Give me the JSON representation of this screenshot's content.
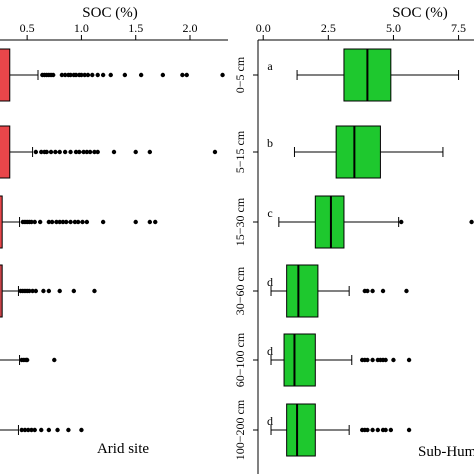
{
  "chart_data": [
    {
      "type": "boxplot",
      "panel": "left",
      "xlabel": "SOC (%)",
      "site_label": "Arid site",
      "xlim": [
        0.25,
        2.35
      ],
      "xticks": [
        "0.5",
        "1.0",
        "1.5",
        "2.0"
      ],
      "xtick_values": [
        0.5,
        1.0,
        1.5,
        2.0
      ],
      "box_color": "#e8464a",
      "box_color_dark": "#c84248",
      "categories": [
        "0-5 cm",
        "5-15 cm",
        "15-30 cm",
        "30-60 cm",
        "60-100 cm",
        "100-200 cm"
      ],
      "boxes": [
        {
          "q3": 0.34,
          "whisker_high": 0.6,
          "outliers": [
            0.64,
            0.66,
            0.68,
            0.7,
            0.72,
            0.74,
            0.82,
            0.85,
            0.88,
            0.9,
            0.93,
            0.95,
            0.98,
            1.0,
            1.03,
            1.06,
            1.1,
            1.15,
            1.2,
            1.27,
            1.4,
            1.55,
            1.75,
            1.93,
            1.97,
            2.3
          ]
        },
        {
          "q3": 0.34,
          "whisker_high": 0.55,
          "outliers": [
            0.58,
            0.63,
            0.66,
            0.68,
            0.72,
            0.76,
            0.8,
            0.85,
            0.9,
            0.95,
            0.98,
            1.02,
            1.05,
            1.08,
            1.12,
            1.15,
            1.3,
            1.5,
            1.63,
            2.23
          ]
        },
        {
          "q3": 0.27,
          "whisker_high": 0.43,
          "outliers": [
            0.46,
            0.48,
            0.5,
            0.52,
            0.54,
            0.57,
            0.62,
            0.7,
            0.73,
            0.77,
            0.8,
            0.83,
            0.86,
            0.9,
            0.94,
            0.97,
            1.01,
            1.05,
            1.2,
            1.5,
            1.63,
            1.68
          ]
        },
        {
          "q3": 0.27,
          "whisker_high": 0.42,
          "outliers": [
            0.44,
            0.46,
            0.48,
            0.5,
            0.52,
            0.55,
            0.58,
            0.65,
            0.7,
            0.8,
            0.93,
            1.12
          ]
        },
        {
          "q3": null,
          "whisker_high": 0.43,
          "outliers": [
            0.45,
            0.47,
            0.49,
            0.5,
            0.75
          ]
        },
        {
          "q3": null,
          "whisker_high": 0.42,
          "outliers": [
            0.45,
            0.48,
            0.51,
            0.54,
            0.57,
            0.63,
            0.7,
            0.78,
            0.88,
            1.0
          ]
        }
      ]
    },
    {
      "type": "boxplot",
      "panel": "right",
      "xlabel": "SOC (%)",
      "site_label": "Sub-Hum",
      "xlim": [
        -0.2,
        10
      ],
      "xticks": [
        "0.0",
        "2.5",
        "5.0",
        "7.5"
      ],
      "xtick_values": [
        0.0,
        2.5,
        5.0,
        7.5
      ],
      "box_color": "#1ec82e",
      "categories": [
        "0−5 cm",
        "5−15 cm",
        "15−30 cm",
        "30−60 cm",
        "60−100 cm",
        "100−200 cm"
      ],
      "letters": [
        "a",
        "b",
        "c",
        "d",
        "d",
        "d"
      ],
      "boxes": [
        {
          "whisker_low": 1.3,
          "q1": 3.1,
          "median": 4.0,
          "q3": 4.9,
          "whisker_high": 7.5,
          "outliers": [
            8.1
          ]
        },
        {
          "whisker_low": 1.2,
          "q1": 2.8,
          "median": 3.5,
          "q3": 4.5,
          "whisker_high": 6.9,
          "outliers": []
        },
        {
          "whisker_low": 0.6,
          "q1": 2.0,
          "median": 2.6,
          "q3": 3.1,
          "whisker_high": 5.2,
          "outliers": [
            5.3,
            8.0
          ]
        },
        {
          "whisker_low": 0.3,
          "q1": 0.9,
          "median": 1.35,
          "q3": 2.1,
          "whisker_high": 3.3,
          "outliers": [
            3.9,
            4.0,
            4.2,
            4.6,
            5.5
          ]
        },
        {
          "whisker_low": 0.3,
          "q1": 0.8,
          "median": 1.2,
          "q3": 2.0,
          "whisker_high": 3.4,
          "outliers": [
            3.8,
            3.9,
            4.0,
            4.2,
            4.4,
            4.5,
            4.6,
            4.7,
            5.0,
            5.6
          ]
        },
        {
          "whisker_low": 0.3,
          "q1": 0.9,
          "median": 1.3,
          "q3": 2.0,
          "whisker_high": 3.3,
          "outliers": [
            3.8,
            3.9,
            4.0,
            4.2,
            4.4,
            4.6,
            4.7,
            4.9,
            5.6
          ]
        }
      ]
    }
  ]
}
